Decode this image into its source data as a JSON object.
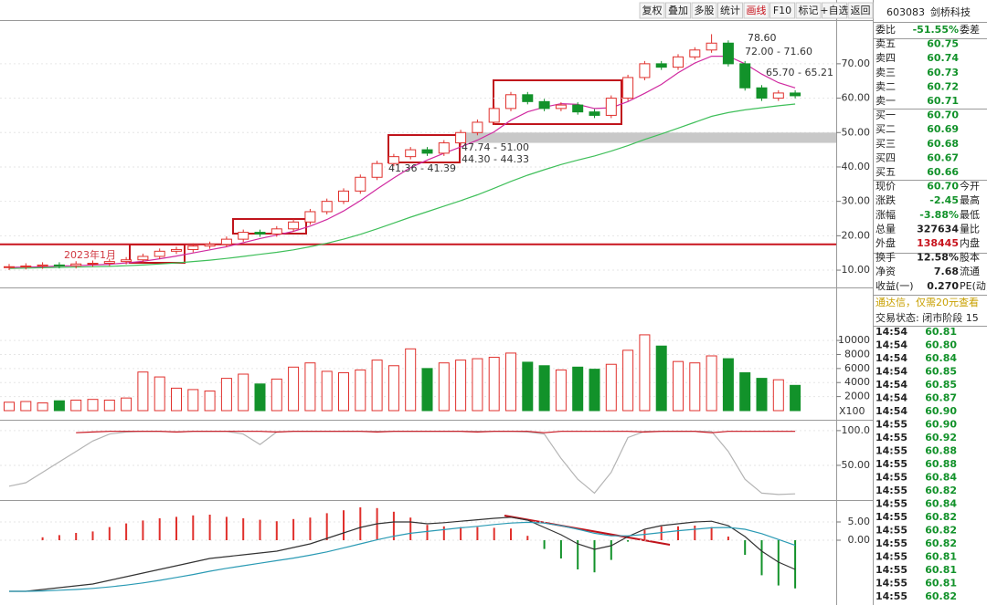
{
  "toolbar": [
    "复权",
    "叠加",
    "多股",
    "统计",
    "画线",
    "F10",
    "标记",
    "+自选",
    "返回"
  ],
  "stock": {
    "code": "603083",
    "name": "剑桥科技"
  },
  "quote": {
    "rows": [
      [
        "委比",
        "-51.55%",
        "委差"
      ],
      [
        "卖五",
        "60.75"
      ],
      [
        "卖四",
        "60.74"
      ],
      [
        "卖三",
        "60.73"
      ],
      [
        "卖二",
        "60.72"
      ],
      [
        "卖一",
        "60.71"
      ],
      [
        "买一",
        "60.70"
      ],
      [
        "买二",
        "60.69"
      ],
      [
        "买三",
        "60.68"
      ],
      [
        "买四",
        "60.67"
      ],
      [
        "买五",
        "60.66"
      ],
      [
        "现价",
        "60.70",
        "今开"
      ],
      [
        "涨跌",
        "-2.45",
        "最高"
      ],
      [
        "涨幅",
        "-3.88%",
        "最低"
      ],
      [
        "总量",
        "327634",
        "量比"
      ],
      [
        "外盘",
        "138445",
        "内盘"
      ],
      [
        "换手",
        "12.58%",
        "股本"
      ],
      [
        "净资",
        "7.68",
        "流通"
      ],
      [
        "收益(一)",
        "0.270",
        "PE(动)"
      ]
    ]
  },
  "notice": "通达信，仅需20元查看",
  "status": "交易状态: 闭市阶段 15",
  "ticks": {
    "rows": [
      [
        "14:54",
        "60.81"
      ],
      [
        "14:54",
        "60.80"
      ],
      [
        "14:54",
        "60.84"
      ],
      [
        "14:54",
        "60.85"
      ],
      [
        "14:54",
        "60.85"
      ],
      [
        "14:54",
        "60.87"
      ],
      [
        "14:54",
        "60.90"
      ],
      [
        "14:55",
        "60.90"
      ],
      [
        "14:55",
        "60.92"
      ],
      [
        "14:55",
        "60.88"
      ],
      [
        "14:55",
        "60.88"
      ],
      [
        "14:55",
        "60.84"
      ],
      [
        "14:55",
        "60.82"
      ],
      [
        "14:55",
        "60.84"
      ],
      [
        "14:55",
        "60.82"
      ],
      [
        "14:55",
        "60.82"
      ],
      [
        "14:55",
        "60.82"
      ],
      [
        "14:55",
        "60.81"
      ],
      [
        "14:55",
        "60.81"
      ],
      [
        "14:55",
        "60.81"
      ],
      [
        "14:55",
        "60.82"
      ]
    ]
  },
  "chart_data": [
    {
      "type": "candlestick",
      "up_color": "#e0302c",
      "down_color": "#12922a",
      "open": [
        10.8,
        11.0,
        11.2,
        11.5,
        11.3,
        11.8,
        12.0,
        12.5,
        13.0,
        14.0,
        15.5,
        16.0,
        17.0,
        17.5,
        19.0,
        21.0,
        20.5,
        22.0,
        24.0,
        27.0,
        30.0,
        33.0,
        37.0,
        41.0,
        43.0,
        45.0,
        44.0,
        47.0,
        50.0,
        53.0,
        57.0,
        61.0,
        59.0,
        57.0,
        58.0,
        56.0,
        55.0,
        60.0,
        66.0,
        70.0,
        69.0,
        72.0,
        74.0,
        76.0,
        70.0,
        63.0,
        60.0,
        61.5
      ],
      "high": [
        11.8,
        12.0,
        12.3,
        12.3,
        12.6,
        12.8,
        13.3,
        13.8,
        14.8,
        16.3,
        16.8,
        17.8,
        18.3,
        19.8,
        21.8,
        21.8,
        22.8,
        24.8,
        27.8,
        30.8,
        33.8,
        37.8,
        41.8,
        43.8,
        45.8,
        45.8,
        47.8,
        50.8,
        53.8,
        57.8,
        61.8,
        61.8,
        59.8,
        58.8,
        58.8,
        56.8,
        60.8,
        66.8,
        70.8,
        70.8,
        72.8,
        74.8,
        78.6,
        76.8,
        70.8,
        63.8,
        62.3,
        62.3
      ],
      "low": [
        10.0,
        10.2,
        10.4,
        10.5,
        10.5,
        11.0,
        11.2,
        11.7,
        12.2,
        13.2,
        14.7,
        15.2,
        16.2,
        16.7,
        18.2,
        19.7,
        19.7,
        21.2,
        23.2,
        26.2,
        29.2,
        32.2,
        36.2,
        40.2,
        42.2,
        43.2,
        43.2,
        46.2,
        49.2,
        52.2,
        56.2,
        58.2,
        56.2,
        56.2,
        55.2,
        54.2,
        54.2,
        59.2,
        65.2,
        68.2,
        68.2,
        71.2,
        73.2,
        69.2,
        62.2,
        59.2,
        59.2,
        59.9
      ],
      "close": [
        11.0,
        11.2,
        11.5,
        11.3,
        11.8,
        12.0,
        12.5,
        13.0,
        14.0,
        15.5,
        16.0,
        17.0,
        17.5,
        19.0,
        21.0,
        20.5,
        22.0,
        24.0,
        27.0,
        30.0,
        33.0,
        37.0,
        41.0,
        43.0,
        45.0,
        44.0,
        47.0,
        50.0,
        53.0,
        57.0,
        61.0,
        59.0,
        57.0,
        58.0,
        56.0,
        55.0,
        60.0,
        66.0,
        70.0,
        69.0,
        72.0,
        74.0,
        76.0,
        70.0,
        63.0,
        60.0,
        61.5,
        60.7
      ],
      "series": [
        {
          "color": "#d02aa0",
          "values": [
            10.8,
            10.9,
            11.0,
            11.2,
            11.3,
            11.5,
            11.7,
            12.1,
            12.6,
            13.3,
            14.1,
            15.0,
            15.9,
            16.8,
            18.0,
            19.2,
            20.2,
            21.3,
            22.8,
            24.7,
            27.2,
            30.2,
            33.6,
            36.8,
            39.8,
            42.0,
            44.0,
            45.8,
            47.8,
            50.2,
            53.6,
            56.0,
            57.4,
            58.4,
            58.2,
            57.0,
            57.2,
            59.0,
            61.4,
            64.0,
            67.4,
            70.2,
            72.2,
            72.2,
            70.0,
            67.0,
            64.5,
            63.0
          ]
        },
        {
          "color": "#3fbf5a",
          "values": [
            10.5,
            10.6,
            10.7,
            10.8,
            10.9,
            11.0,
            11.1,
            11.3,
            11.5,
            11.8,
            12.1,
            12.5,
            12.9,
            13.4,
            14.0,
            14.6,
            15.2,
            15.9,
            16.8,
            17.8,
            19.0,
            20.4,
            22.0,
            23.7,
            25.4,
            27.0,
            28.6,
            30.2,
            31.9,
            33.8,
            35.8,
            37.6,
            39.2,
            40.7,
            42.0,
            43.2,
            44.6,
            46.2,
            48.0,
            49.6,
            51.3,
            53.0,
            54.7,
            55.8,
            56.6,
            57.2,
            57.8,
            58.3
          ]
        }
      ],
      "reference_line": {
        "value": 17.5,
        "color": "#c8141e"
      },
      "highlight_band": {
        "range": [
          47,
          50
        ],
        "color": "#c8c8c8"
      },
      "annotations": [
        "78.60",
        "72.00 - 71.60",
        "65.70 - 65.21",
        "47.74 - 51.00",
        "44.30 - 44.33",
        "41.36 - 41.39",
        "2023年1月"
      ],
      "ylim": [
        6.3,
        82.7
      ],
      "yticks": [
        {
          "value": 70,
          "label": "70.00"
        },
        {
          "value": 60,
          "label": "60.00"
        },
        {
          "value": 50,
          "label": "50.00"
        },
        {
          "value": 40,
          "label": "40.00"
        },
        {
          "value": 30,
          "label": "30.00"
        },
        {
          "value": 20,
          "label": "20.00"
        },
        {
          "value": 10,
          "label": "10.00"
        }
      ],
      "grid": true
    },
    {
      "type": "volume",
      "unit": "X100",
      "values": [
        1200,
        1300,
        1100,
        1400,
        1500,
        1600,
        1500,
        1800,
        5500,
        4800,
        3200,
        3000,
        2800,
        4600,
        5200,
        3800,
        4500,
        6200,
        6800,
        5600,
        5400,
        5800,
        7200,
        6400,
        8800,
        6000,
        6800,
        7200,
        7400,
        7600,
        8200,
        6900,
        6400,
        5800,
        6200,
        5900,
        6600,
        8600,
        10800,
        9200,
        7000,
        6800,
        7800,
        7400,
        5400,
        4600,
        4400,
        3600
      ],
      "ylim": [
        0,
        15600
      ],
      "yticks": [
        10000,
        8000,
        6000,
        4000,
        2000
      ],
      "grid": true
    },
    {
      "type": "line",
      "series": [
        {
          "color": "#b4b4b4",
          "values": [
            20,
            25,
            40,
            55,
            70,
            85,
            95,
            98,
            99,
            99,
            98,
            99,
            99,
            99,
            95,
            80,
            98,
            99,
            99,
            99,
            99,
            99,
            99,
            99,
            99,
            99,
            99,
            99,
            99,
            99,
            99,
            98,
            95,
            60,
            30,
            10,
            40,
            90,
            99,
            99,
            99,
            99,
            99,
            70,
            30,
            10,
            8,
            9
          ]
        },
        {
          "color": "#c8141e",
          "values": [
            null,
            null,
            null,
            null,
            97,
            98,
            99,
            99,
            99,
            99,
            98,
            99,
            99,
            99,
            99,
            99,
            98,
            99,
            99,
            99,
            99,
            99,
            98,
            99,
            99,
            99,
            99,
            99,
            98,
            99,
            99,
            99,
            97,
            99,
            99,
            99,
            99,
            99,
            98,
            99,
            99,
            99,
            97,
            99,
            99,
            99,
            99,
            99
          ]
        }
      ],
      "ylim": [
        0,
        113
      ],
      "yticks": [
        {
          "value": 100,
          "label": "100.0"
        },
        {
          "value": 50,
          "label": "50.00"
        }
      ],
      "grid": true
    },
    {
      "type": "macd",
      "series": [
        {
          "color": "#333333",
          "values": [
            -14,
            -14,
            -13.5,
            -13,
            -12.5,
            -12,
            -11,
            -10,
            -9,
            -8,
            -7,
            -6,
            -5,
            -4.5,
            -4,
            -3.5,
            -3,
            -2,
            -1,
            0.5,
            2,
            3.5,
            4.5,
            5,
            5,
            4.5,
            4.8,
            5.2,
            5.6,
            6.0,
            6.3,
            5.5,
            3.5,
            1.5,
            -1,
            -2.5,
            -1.5,
            1,
            3,
            4,
            4.5,
            5,
            5.2,
            4,
            1,
            -3,
            -6,
            -8
          ]
        },
        {
          "color": "#2a9ab4",
          "values": [
            -14,
            -14,
            -13.9,
            -13.7,
            -13.5,
            -13.2,
            -12.8,
            -12.3,
            -11.7,
            -11.0,
            -10.2,
            -9.4,
            -8.5,
            -7.7,
            -7.0,
            -6.3,
            -5.6,
            -4.9,
            -4.1,
            -3.2,
            -2.1,
            -1.0,
            0.1,
            1.1,
            1.9,
            2.4,
            2.9,
            3.4,
            3.8,
            4.3,
            4.7,
            4.9,
            4.7,
            4.0,
            3.0,
            1.9,
            1.2,
            1.2,
            1.6,
            2.1,
            2.6,
            3.0,
            3.4,
            3.5,
            3.0,
            1.8,
            0.2,
            -1.4
          ]
        }
      ],
      "histogram": {
        "up_color": "#e0302c",
        "down_color": "#12922a",
        "values": [
          0,
          0,
          0.8,
          1.4,
          2,
          2.4,
          3.6,
          4.6,
          5.4,
          6,
          6.4,
          6.8,
          7,
          6.4,
          6,
          5.6,
          5.2,
          5.8,
          6.2,
          7.4,
          8.2,
          9,
          8.8,
          7.8,
          6.2,
          4.2,
          3.8,
          3.6,
          3.6,
          3.4,
          3.2,
          1.2,
          -2.4,
          -5,
          -8,
          -8.8,
          -5.4,
          -0.4,
          2.8,
          3.8,
          3.8,
          4,
          3.6,
          1,
          -4,
          -9.6,
          -12.4,
          -13.2
        ]
      },
      "ylim": [
        -17.75,
        10.5
      ],
      "yticks": [
        {
          "value": 5,
          "label": "5.00"
        },
        {
          "value": 0,
          "label": "0.00"
        }
      ],
      "grid": true
    }
  ]
}
